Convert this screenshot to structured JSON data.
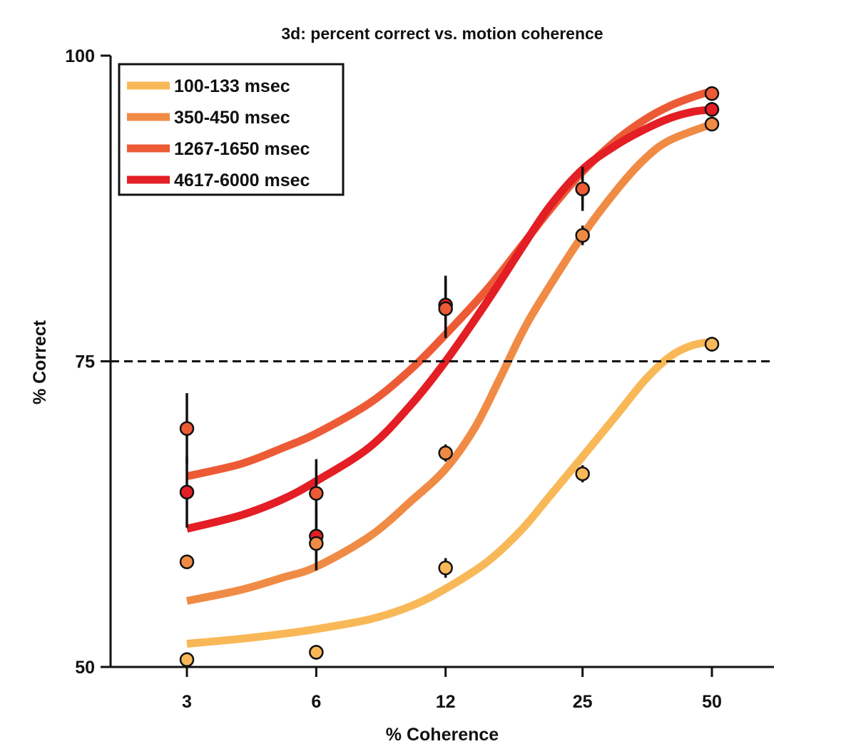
{
  "chart_data": {
    "type": "line",
    "title": "3d: percent correct vs. motion coherence",
    "xlabel": "% Coherence",
    "ylabel": "% Correct",
    "x_scale": "log",
    "x_ticks": [
      3,
      6,
      12,
      25,
      50
    ],
    "y_ticks": [
      50,
      75,
      100
    ],
    "ylim": [
      50,
      100
    ],
    "reference_line": {
      "y": 75,
      "style": "dashed"
    },
    "legend_position": "top-left",
    "grid": false,
    "series": [
      {
        "name": "100-133 msec",
        "color": "#f9b857",
        "points": [
          {
            "x": 3,
            "y": 50.6,
            "err": 0.6
          },
          {
            "x": 6,
            "y": 51.2,
            "err": 0.6
          },
          {
            "x": 12,
            "y": 58.1,
            "err": 0.8
          },
          {
            "x": 25,
            "y": 65.8,
            "err": 0.7
          },
          {
            "x": 50,
            "y": 76.4,
            "err": 0.6
          }
        ],
        "fit": [
          {
            "x": 3,
            "y": 51.9
          },
          {
            "x": 4,
            "y": 52.3
          },
          {
            "x": 5,
            "y": 52.7
          },
          {
            "x": 6,
            "y": 53.1
          },
          {
            "x": 8,
            "y": 53.9
          },
          {
            "x": 10,
            "y": 55.0
          },
          {
            "x": 12,
            "y": 56.4
          },
          {
            "x": 15,
            "y": 58.6
          },
          {
            "x": 18,
            "y": 61.2
          },
          {
            "x": 21,
            "y": 64.0
          },
          {
            "x": 25,
            "y": 67.2
          },
          {
            "x": 30,
            "y": 70.6
          },
          {
            "x": 35,
            "y": 73.5
          },
          {
            "x": 40,
            "y": 75.4
          },
          {
            "x": 45,
            "y": 76.3
          },
          {
            "x": 50,
            "y": 76.6
          }
        ]
      },
      {
        "name": "350-450 msec",
        "color": "#f08b45",
        "points": [
          {
            "x": 3,
            "y": 58.6,
            "err": 0.0
          },
          {
            "x": 6,
            "y": 60.1,
            "err": 2.2
          },
          {
            "x": 12,
            "y": 67.5,
            "err": 0.7
          },
          {
            "x": 25,
            "y": 85.3,
            "err": 0.8
          },
          {
            "x": 50,
            "y": 94.4,
            "err": 0.5
          }
        ],
        "fit": [
          {
            "x": 3,
            "y": 55.4
          },
          {
            "x": 4,
            "y": 56.3
          },
          {
            "x": 5,
            "y": 57.3
          },
          {
            "x": 6,
            "y": 58.2
          },
          {
            "x": 8,
            "y": 60.7
          },
          {
            "x": 10,
            "y": 63.6
          },
          {
            "x": 12,
            "y": 66.2
          },
          {
            "x": 14,
            "y": 69.5
          },
          {
            "x": 16,
            "y": 73.5
          },
          {
            "x": 18,
            "y": 77.2
          },
          {
            "x": 20,
            "y": 80.0
          },
          {
            "x": 25,
            "y": 85.3
          },
          {
            "x": 30,
            "y": 89.0
          },
          {
            "x": 35,
            "y": 91.6
          },
          {
            "x": 40,
            "y": 93.1
          },
          {
            "x": 50,
            "y": 94.4
          }
        ]
      },
      {
        "name": "1267-1650 msec",
        "color": "#ec5b36",
        "points": [
          {
            "x": 3,
            "y": 69.5,
            "err": 2.9
          },
          {
            "x": 6,
            "y": 64.2,
            "err": 2.8
          },
          {
            "x": 12,
            "y": 79.3,
            "err": 2.4
          },
          {
            "x": 25,
            "y": 89.1,
            "err": 1.0
          },
          {
            "x": 50,
            "y": 96.9,
            "err": 0.5
          }
        ],
        "fit": [
          {
            "x": 3,
            "y": 65.6
          },
          {
            "x": 4,
            "y": 66.6
          },
          {
            "x": 5,
            "y": 67.9
          },
          {
            "x": 6,
            "y": 69.1
          },
          {
            "x": 8,
            "y": 71.6
          },
          {
            "x": 10,
            "y": 74.4
          },
          {
            "x": 12,
            "y": 77.2
          },
          {
            "x": 15,
            "y": 80.9
          },
          {
            "x": 18,
            "y": 84.4
          },
          {
            "x": 21,
            "y": 87.4
          },
          {
            "x": 25,
            "y": 90.5
          },
          {
            "x": 30,
            "y": 93.1
          },
          {
            "x": 35,
            "y": 94.8
          },
          {
            "x": 40,
            "y": 95.9
          },
          {
            "x": 45,
            "y": 96.6
          },
          {
            "x": 50,
            "y": 97.1
          }
        ]
      },
      {
        "name": "4617-6000 msec",
        "color": "#e31e24",
        "points": [
          {
            "x": 3,
            "y": 64.3,
            "err": 2.9
          },
          {
            "x": 6,
            "y": 60.7,
            "err": 2.5
          },
          {
            "x": 12,
            "y": 79.6,
            "err": 2.4
          },
          {
            "x": 25,
            "y": 89.1,
            "err": 1.8
          },
          {
            "x": 50,
            "y": 95.6,
            "err": 0.6
          }
        ],
        "fit": [
          {
            "x": 3,
            "y": 61.3
          },
          {
            "x": 4,
            "y": 62.4
          },
          {
            "x": 5,
            "y": 63.7
          },
          {
            "x": 6,
            "y": 65.2
          },
          {
            "x": 8,
            "y": 68.0
          },
          {
            "x": 10,
            "y": 71.5
          },
          {
            "x": 12,
            "y": 75.0
          },
          {
            "x": 15,
            "y": 79.9
          },
          {
            "x": 18,
            "y": 84.2
          },
          {
            "x": 21,
            "y": 87.7
          },
          {
            "x": 25,
            "y": 90.7
          },
          {
            "x": 30,
            "y": 92.7
          },
          {
            "x": 35,
            "y": 94.0
          },
          {
            "x": 40,
            "y": 94.9
          },
          {
            "x": 45,
            "y": 95.4
          },
          {
            "x": 50,
            "y": 95.6
          }
        ]
      }
    ]
  }
}
